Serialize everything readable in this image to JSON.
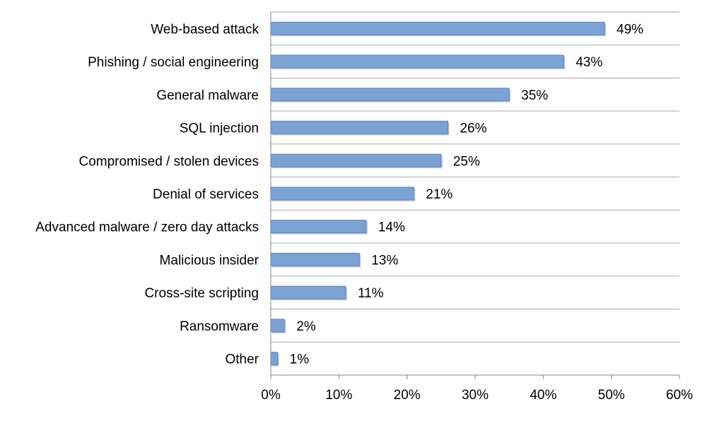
{
  "chart_data": {
    "type": "bar",
    "orientation": "horizontal",
    "categories": [
      "Web-based attack",
      "Phishing / social engineering",
      "General malware",
      "SQL injection",
      "Compromised / stolen devices",
      "Denial of services",
      "Advanced malware / zero day attacks",
      "Malicious insider",
      "Cross-site scripting",
      "Ransomware",
      "Other"
    ],
    "values": [
      49,
      43,
      35,
      26,
      25,
      21,
      14,
      13,
      11,
      2,
      1
    ],
    "value_labels": [
      "49%",
      "43%",
      "35%",
      "26%",
      "25%",
      "21%",
      "14%",
      "13%",
      "11%",
      "2%",
      "1%"
    ],
    "xlim": [
      0,
      60
    ],
    "x_ticks": [
      0,
      10,
      20,
      30,
      40,
      50,
      60
    ],
    "x_tick_labels": [
      "0%",
      "10%",
      "20%",
      "30%",
      "40%",
      "50%",
      "60%"
    ],
    "title": "",
    "xlabel": "",
    "ylabel": "",
    "grid": "horizontal separators between categories",
    "legend": "none",
    "colors": {
      "bar_fill": "#7aa3d4",
      "bar_stroke": "#5a85bb",
      "grid": "#aaaaaa",
      "axis": "#888888"
    }
  }
}
